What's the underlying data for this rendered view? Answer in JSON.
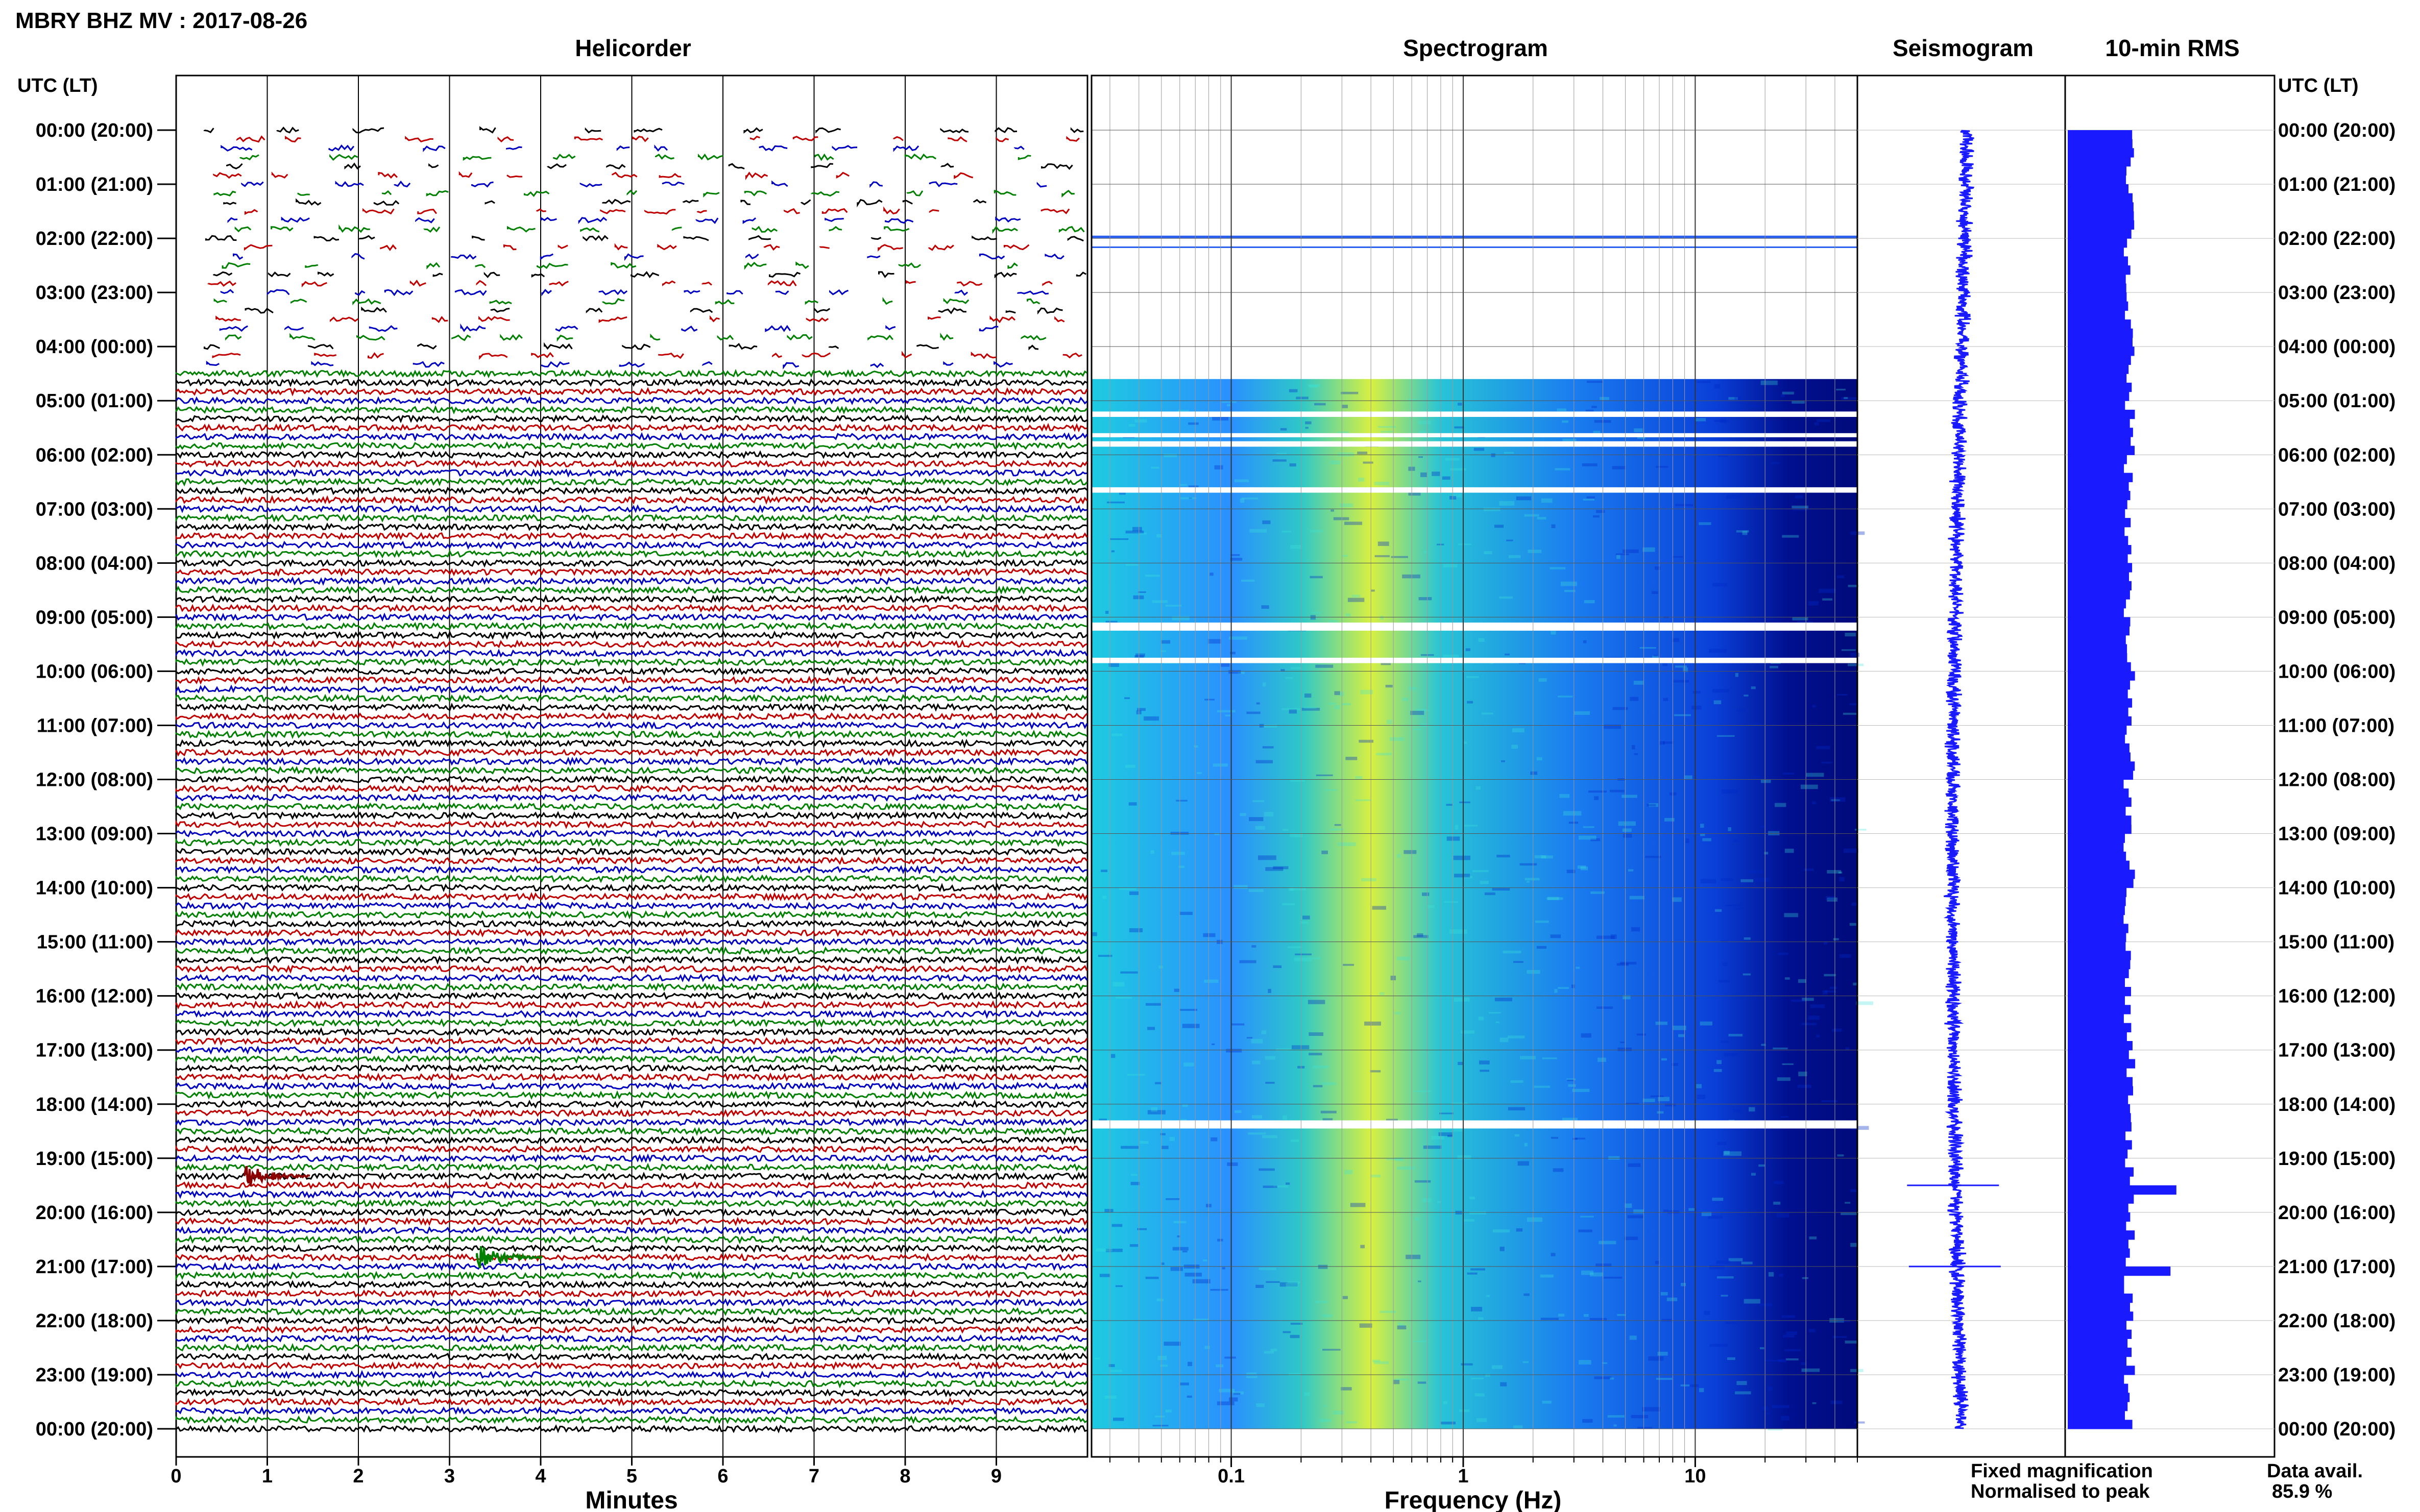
{
  "header": {
    "title": "MBRY BHZ MV : 2017-08-26"
  },
  "panels": {
    "helicorder_title": "Helicorder",
    "spectrogram_title": "Spectrogram",
    "seismogram_title": "Seismogram",
    "rms_title": "10-min RMS"
  },
  "axes": {
    "left_header": "UTC (LT)",
    "right_header": "UTC (LT)",
    "time_labels": [
      "00:00 (20:00)",
      "01:00 (21:00)",
      "02:00 (22:00)",
      "03:00 (23:00)",
      "04:00 (00:00)",
      "05:00 (01:00)",
      "06:00 (02:00)",
      "07:00 (03:00)",
      "08:00 (04:00)",
      "09:00 (05:00)",
      "10:00 (06:00)",
      "11:00 (07:00)",
      "12:00 (08:00)",
      "13:00 (09:00)",
      "14:00 (10:00)",
      "15:00 (11:00)",
      "16:00 (12:00)",
      "17:00 (13:00)",
      "18:00 (14:00)",
      "19:00 (15:00)",
      "20:00 (16:00)",
      "21:00 (17:00)",
      "22:00 (18:00)",
      "23:00 (19:00)",
      "00:00 (20:00)"
    ],
    "minutes_label": "Minutes",
    "minute_ticks": [
      "0",
      "1",
      "2",
      "3",
      "4",
      "5",
      "6",
      "7",
      "8",
      "9"
    ],
    "frequency_label": "Frequency (Hz)",
    "frequency_ticks": [
      "0.1",
      "1",
      "10"
    ]
  },
  "legend": {
    "fixed": "Fixed magnification",
    "normalised": "Normalised to peak",
    "fixed_color": "#1a1aff",
    "normalised_color": "#e01010"
  },
  "data_avail": {
    "label": "Data avail.",
    "value": "85.9 %"
  },
  "chart_data": [
    {
      "type": "line",
      "name": "helicorder",
      "title": "Helicorder",
      "xlabel": "Minutes",
      "xlim": [
        0,
        10
      ],
      "ylim_hours": [
        0,
        24
      ],
      "rows_per_hour": 6,
      "trace_colors": [
        "#000000",
        "#c00000",
        "#0000c0",
        "#008000"
      ],
      "sparse_until_hour": 4.5,
      "events": [
        {
          "hour": 19.33,
          "minute": 0.75,
          "color": "#8b0000"
        },
        {
          "hour": 20.83,
          "minute": 3.3,
          "color": "#008000"
        }
      ]
    },
    {
      "type": "heatmap",
      "name": "spectrogram",
      "title": "Spectrogram",
      "xlabel": "Frequency (Hz)",
      "xscale": "log",
      "xlim": [
        0.025,
        50
      ],
      "ylim_hours": [
        0,
        24
      ],
      "data_start_hour": 4.6,
      "signal_start_hour_pre": 1.95,
      "gaps_hours": [
        [
          5.2,
          5.3
        ],
        [
          5.6,
          5.65
        ],
        [
          5.75,
          5.85
        ],
        [
          6.6,
          6.7
        ],
        [
          9.1,
          9.25
        ],
        [
          9.75,
          9.85
        ],
        [
          18.3,
          18.45
        ]
      ],
      "peak_frequency_hz": 0.4
    },
    {
      "type": "line",
      "name": "seismogram",
      "title": "Seismogram",
      "ylim_hours": [
        0,
        24
      ],
      "spikes_hours": [
        19.5,
        21.0
      ]
    },
    {
      "type": "bar",
      "name": "rms",
      "title": "10-min RMS",
      "orientation": "horizontal",
      "ylim_hours": [
        0,
        24
      ],
      "base_value": 1.0,
      "peaks": [
        {
          "hour": 19.5,
          "value": 1.85
        },
        {
          "hour": 21.0,
          "value": 1.75
        }
      ]
    }
  ]
}
